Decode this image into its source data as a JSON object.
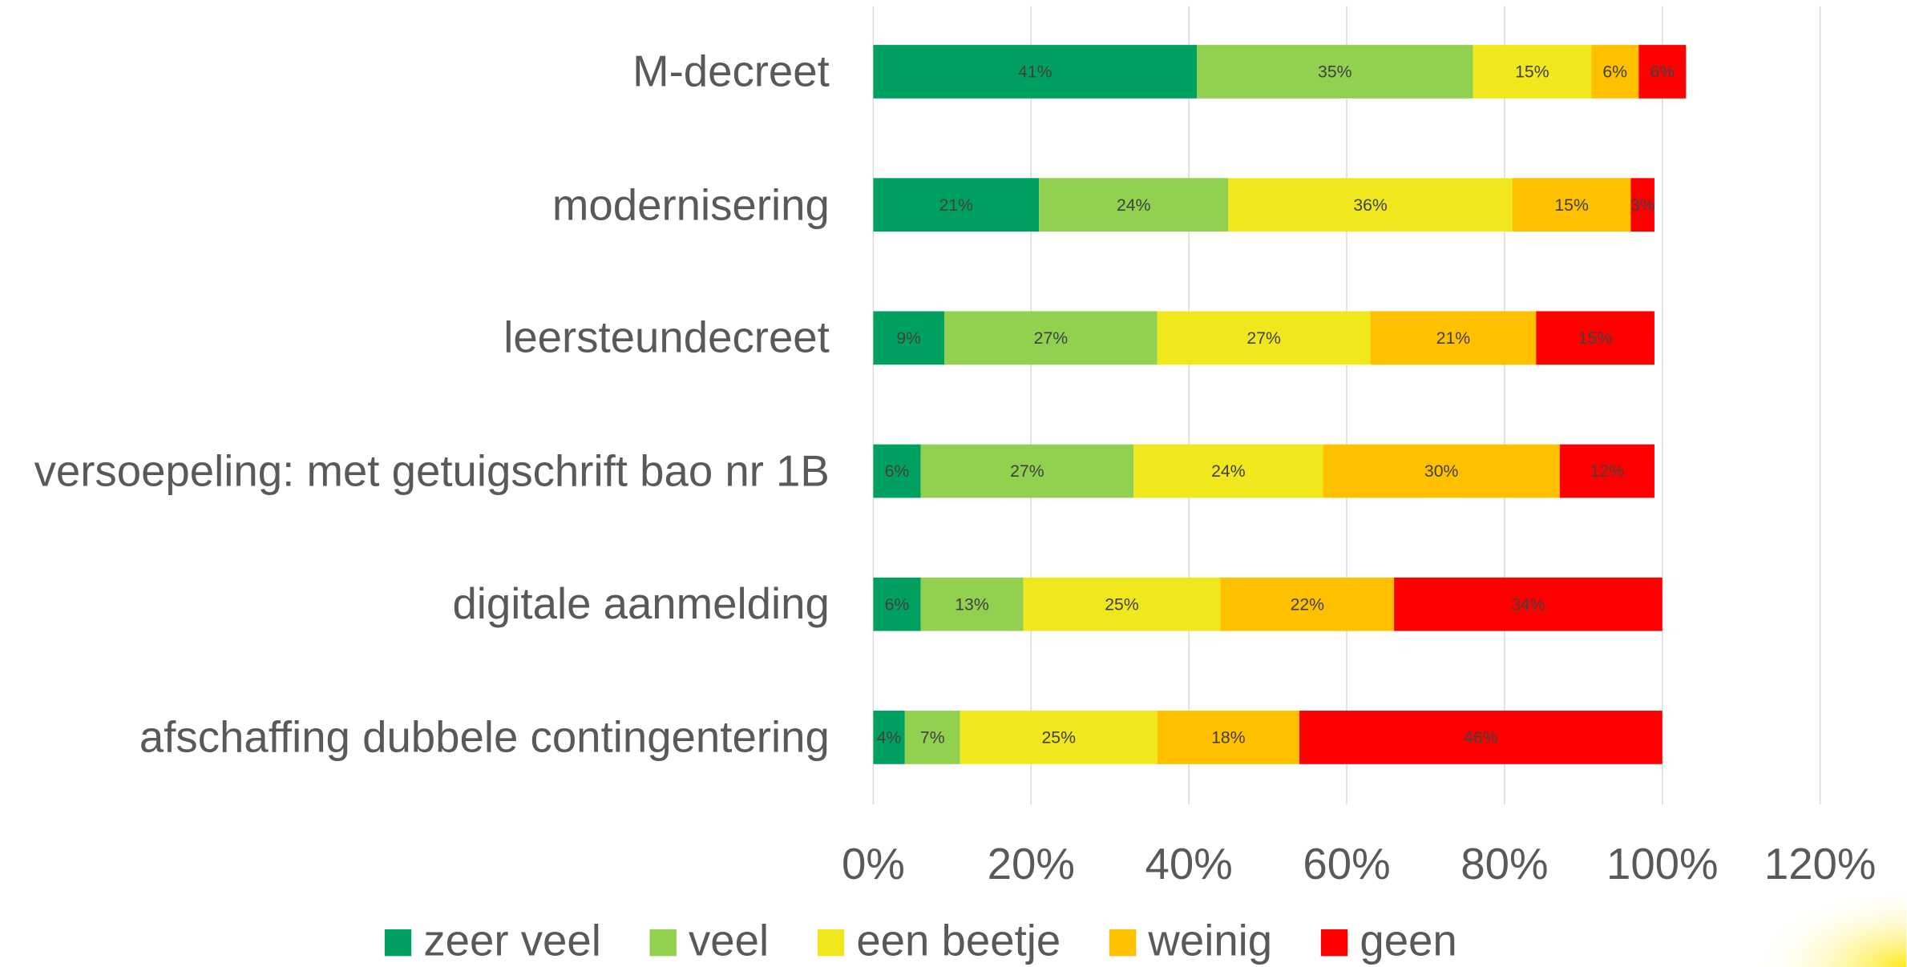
{
  "chart_data": {
    "type": "stacked_barh",
    "categories": [
      "M-decreet",
      "modernisering",
      "leersteundecreet",
      "versoepeling: met getuigschrift bao nr 1B",
      "digitale aanmelding",
      "afschaffing dubbele contingentering"
    ],
    "series": [
      {
        "name": "zeer veel",
        "color": "#00a060",
        "values": [
          41,
          21,
          9,
          6,
          6,
          4
        ],
        "value_labels": [
          "41%",
          "21%",
          "9%",
          "6%",
          "6%",
          "4%"
        ]
      },
      {
        "name": "veel",
        "color": "#92d050",
        "values": [
          35,
          24,
          27,
          27,
          13,
          7
        ],
        "value_labels": [
          "35%",
          "24%",
          "27%",
          "27%",
          "13%",
          "7%"
        ]
      },
      {
        "name": "een beetje",
        "color": "#f0e81c",
        "values": [
          15,
          36,
          27,
          24,
          25,
          25
        ],
        "value_labels": [
          "15%",
          "36%",
          "27%",
          "24%",
          "25%",
          "25%"
        ]
      },
      {
        "name": "weinig",
        "color": "#ffc000",
        "values": [
          6,
          15,
          21,
          30,
          22,
          18
        ],
        "value_labels": [
          "6%",
          "15%",
          "21%",
          "30%",
          "22%",
          "18%"
        ]
      },
      {
        "name": "geen",
        "color": "#ff0000",
        "values": [
          6,
          3,
          15,
          12,
          34,
          46
        ],
        "value_labels": [
          "6%",
          "3%",
          "15%",
          "12%",
          "34%",
          "46%"
        ]
      }
    ],
    "xlim": [
      0,
      120
    ],
    "xticks": [
      {
        "value": 0,
        "label": "0%"
      },
      {
        "value": 20,
        "label": "20%"
      },
      {
        "value": 40,
        "label": "40%"
      },
      {
        "value": 60,
        "label": "60%"
      },
      {
        "value": 80,
        "label": "80%"
      },
      {
        "value": 100,
        "label": "100%"
      },
      {
        "value": 120,
        "label": "120%"
      }
    ],
    "grid": true,
    "legend": "bottom"
  }
}
